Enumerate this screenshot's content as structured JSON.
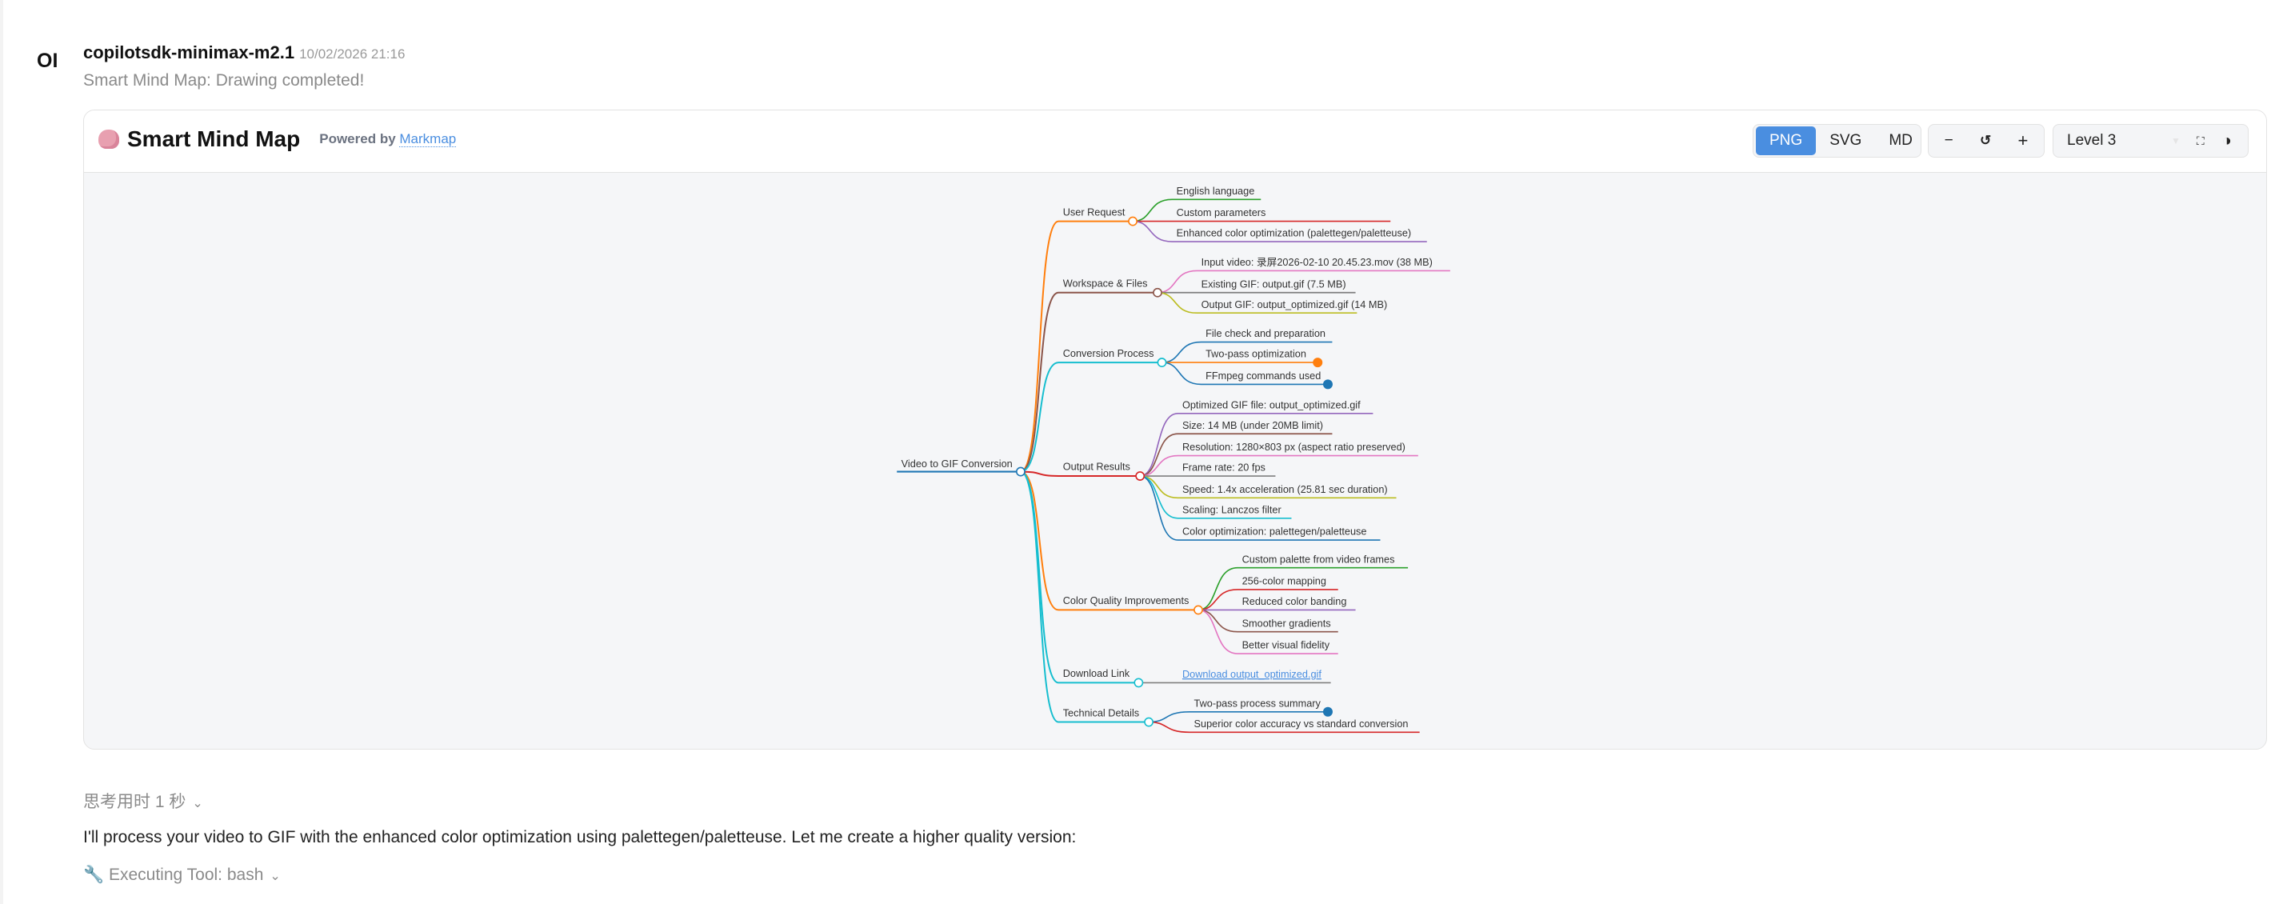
{
  "message": {
    "avatar": "OI",
    "author": "copilotsdk-minimax-m2.1",
    "timestamp": "10/02/2026 21:16",
    "status": "Smart Mind Map: Drawing completed!"
  },
  "card": {
    "title": "Smart Mind Map",
    "powered_by": "Powered by",
    "powered_link": "Markmap",
    "export_buttons": [
      "PNG",
      "SVG",
      "MD"
    ],
    "active_export": "PNG",
    "zoom_out": "−",
    "reset": "↺",
    "zoom_in": "+",
    "level_select": "Level 3",
    "fullscreen_icon": "fullscreen-icon",
    "theme_icon": "contrast-icon"
  },
  "mindmap": {
    "root": {
      "label": "Video to GIF Conversion",
      "color": "#1f77b4"
    },
    "branches": [
      {
        "label": "User Request",
        "color": "#ff7f0e",
        "children": [
          {
            "label": "English language",
            "color": "#2ca02c"
          },
          {
            "label": "Custom parameters",
            "color": "#d62728"
          },
          {
            "label": "Enhanced color optimization (palettegen/paletteuse)",
            "color": "#9467bd"
          }
        ]
      },
      {
        "label": "Workspace & Files",
        "color": "#8c564b",
        "children": [
          {
            "label": "Input video: 录屏2026-02-10 20.45.23.mov (38 MB)",
            "color": "#e377c2"
          },
          {
            "label": "Existing GIF: output.gif (7.5 MB)",
            "color": "#7f7f7f"
          },
          {
            "label": "Output GIF: output_optimized.gif (14 MB)",
            "color": "#bcbd22"
          }
        ]
      },
      {
        "label": "Conversion Process",
        "color": "#17becf",
        "children": [
          {
            "label": "File check and preparation",
            "color": "#1f77b4"
          },
          {
            "label": "Two-pass optimization",
            "color": "#ff7f0e",
            "collapsed": true
          },
          {
            "label": "FFmpeg commands used",
            "color": "#1f77b4",
            "collapsed": true
          }
        ]
      },
      {
        "label": "Output Results",
        "color": "#d62728",
        "children": [
          {
            "label": "Optimized GIF file: output_optimized.gif",
            "color": "#9467bd"
          },
          {
            "label": "Size: 14 MB (under 20MB limit)",
            "color": "#8c564b"
          },
          {
            "label": "Resolution: 1280×803 px (aspect ratio preserved)",
            "color": "#e377c2"
          },
          {
            "label": "Frame rate: 20 fps",
            "color": "#7f7f7f"
          },
          {
            "label": "Speed: 1.4x acceleration (25.81 sec duration)",
            "color": "#bcbd22"
          },
          {
            "label": "Scaling: Lanczos filter",
            "color": "#17becf"
          },
          {
            "label": "Color optimization: palettegen/paletteuse",
            "color": "#1f77b4"
          }
        ]
      },
      {
        "label": "Color Quality Improvements",
        "color": "#ff7f0e",
        "children": [
          {
            "label": "Custom palette from video frames",
            "color": "#2ca02c"
          },
          {
            "label": "256-color mapping",
            "color": "#d62728"
          },
          {
            "label": "Reduced color banding",
            "color": "#9467bd"
          },
          {
            "label": "Smoother gradients",
            "color": "#8c564b"
          },
          {
            "label": "Better visual fidelity",
            "color": "#e377c2"
          }
        ]
      },
      {
        "label": "Download Link",
        "color": "#17becf",
        "children": [
          {
            "label": "Download output_optimized.gif",
            "color": "#7f7f7f",
            "link": true
          }
        ]
      },
      {
        "label": "Technical Details",
        "color": "#17becf",
        "children": [
          {
            "label": "Two-pass process summary",
            "color": "#1f77b4",
            "collapsed": true
          },
          {
            "label": "Superior color accuracy vs standard conversion",
            "color": "#d62728"
          }
        ]
      }
    ],
    "link_color": "#4a8ee0"
  },
  "footer": {
    "thinking": "思考用时 1 秒",
    "reply": "I'll process your video to GIF with the enhanced color optimization using palettegen/paletteuse. Let me create a higher quality version:",
    "executing": "🔧 Executing Tool: bash"
  }
}
